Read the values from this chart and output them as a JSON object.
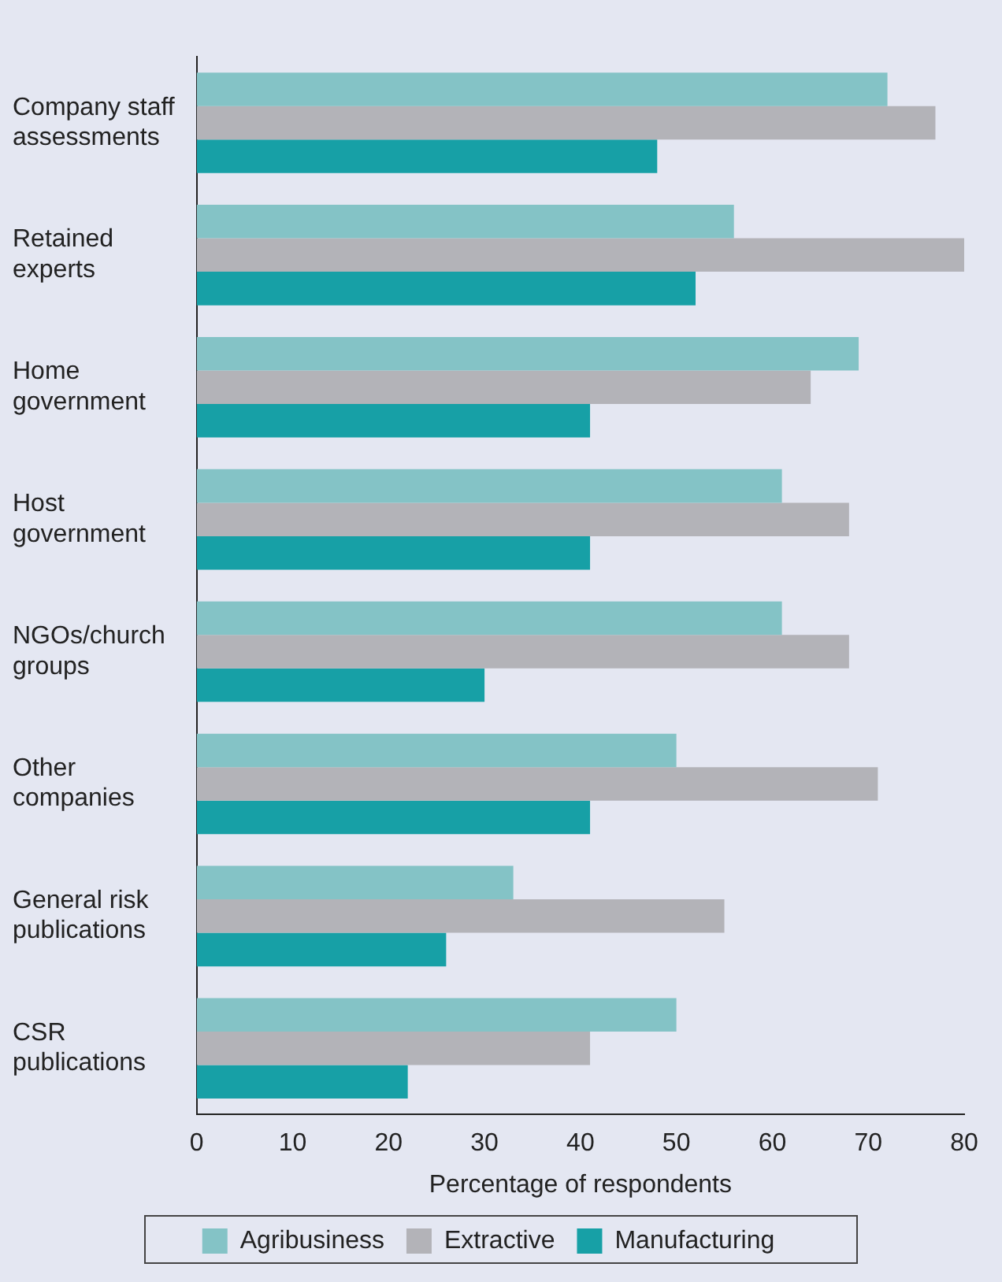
{
  "chart_data": {
    "type": "bar",
    "orientation": "horizontal",
    "xlabel": "Percentage of respondents",
    "categories": [
      "Company staff assessments",
      "Retained experts",
      "Home government",
      "Host government",
      "NGOs/church groups",
      "Other companies",
      "General risk publications",
      "CSR publications"
    ],
    "series": [
      {
        "name": "Agribusiness",
        "color": "#84c3c6",
        "values": [
          72,
          56,
          69,
          61,
          61,
          50,
          33,
          50
        ]
      },
      {
        "name": "Extractive",
        "color": "#b3b3b8",
        "values": [
          77,
          80,
          64,
          68,
          68,
          71,
          55,
          41
        ]
      },
      {
        "name": "Manufacturing",
        "color": "#17a0a6",
        "values": [
          48,
          52,
          41,
          41,
          30,
          41,
          26,
          22
        ]
      }
    ],
    "xlim": [
      0,
      80
    ],
    "xticks": [
      0,
      10,
      20,
      30,
      40,
      50,
      60,
      70,
      80
    ],
    "grid": false,
    "legend": "bottom"
  }
}
